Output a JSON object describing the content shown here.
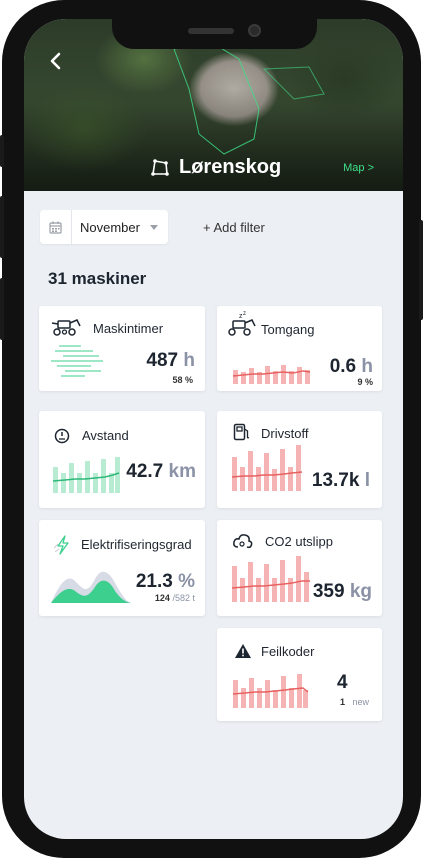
{
  "header": {
    "location": "Lørenskog",
    "map_link": "Map >"
  },
  "filters": {
    "month": "November",
    "add_filter": "+ Add filter"
  },
  "summary": {
    "title": "31 maskiner"
  },
  "cards": {
    "maskintimer": {
      "title": "Maskintimer",
      "value": "487",
      "unit": "h",
      "sub": "58 %"
    },
    "tomgang": {
      "title": "Tomgang",
      "value": "0.6",
      "unit": "h",
      "sub": "9 %"
    },
    "avstand": {
      "title": "Avstand",
      "value": "42.7",
      "unit": "km"
    },
    "drivstoff": {
      "title": "Drivstoff",
      "value": "13.7k",
      "unit": "l"
    },
    "elektrifisering": {
      "title": "Elektrifiseringsgrad",
      "value": "21.3",
      "unit": "%",
      "sub_value": "124",
      "sub_total": "/582 t"
    },
    "co2": {
      "title": "CO2 utslipp",
      "value": "359",
      "unit": "kg"
    },
    "feilkoder": {
      "title": "Feilkoder",
      "value": "4",
      "sub_value": "1",
      "sub_label": "new"
    }
  },
  "colors": {
    "green": "#3ccf8e",
    "red": "#f28b8b",
    "red_line": "#e86161",
    "map_link": "#3ee08a"
  }
}
